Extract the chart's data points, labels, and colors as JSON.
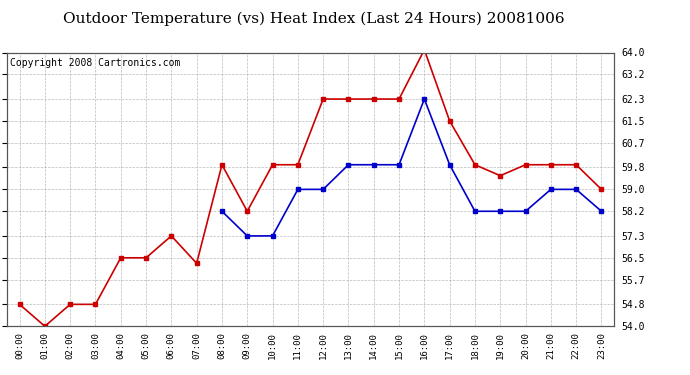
{
  "title": "Outdoor Temperature (vs) Heat Index (Last 24 Hours) 20081006",
  "copyright": "Copyright 2008 Cartronics.com",
  "x_labels": [
    "00:00",
    "01:00",
    "02:00",
    "03:00",
    "04:00",
    "05:00",
    "06:00",
    "07:00",
    "08:00",
    "09:00",
    "10:00",
    "11:00",
    "12:00",
    "13:00",
    "14:00",
    "15:00",
    "16:00",
    "17:00",
    "18:00",
    "19:00",
    "20:00",
    "21:00",
    "22:00",
    "23:00"
  ],
  "temp_red": [
    54.8,
    54.0,
    54.8,
    54.8,
    56.5,
    56.5,
    57.3,
    56.3,
    59.9,
    58.2,
    59.9,
    59.9,
    62.3,
    62.3,
    62.3,
    62.3,
    64.1,
    61.5,
    59.9,
    59.5,
    59.9,
    59.9,
    59.9,
    59.0
  ],
  "heat_blue": [
    null,
    null,
    null,
    null,
    null,
    null,
    null,
    null,
    58.2,
    57.3,
    57.3,
    59.0,
    59.0,
    59.9,
    59.9,
    59.9,
    62.3,
    59.9,
    58.2,
    58.2,
    58.2,
    59.0,
    59.0,
    58.2
  ],
  "ylim_min": 54.0,
  "ylim_max": 64.0,
  "yticks": [
    54.0,
    54.8,
    55.7,
    56.5,
    57.3,
    58.2,
    59.0,
    59.8,
    60.7,
    61.5,
    62.3,
    63.2,
    64.0
  ],
  "red_color": "#cc0000",
  "blue_color": "#0000cc",
  "bg_color": "#ffffff",
  "plot_bg": "#ffffff",
  "grid_color": "#aaaaaa",
  "title_fontsize": 11,
  "copyright_fontsize": 7
}
